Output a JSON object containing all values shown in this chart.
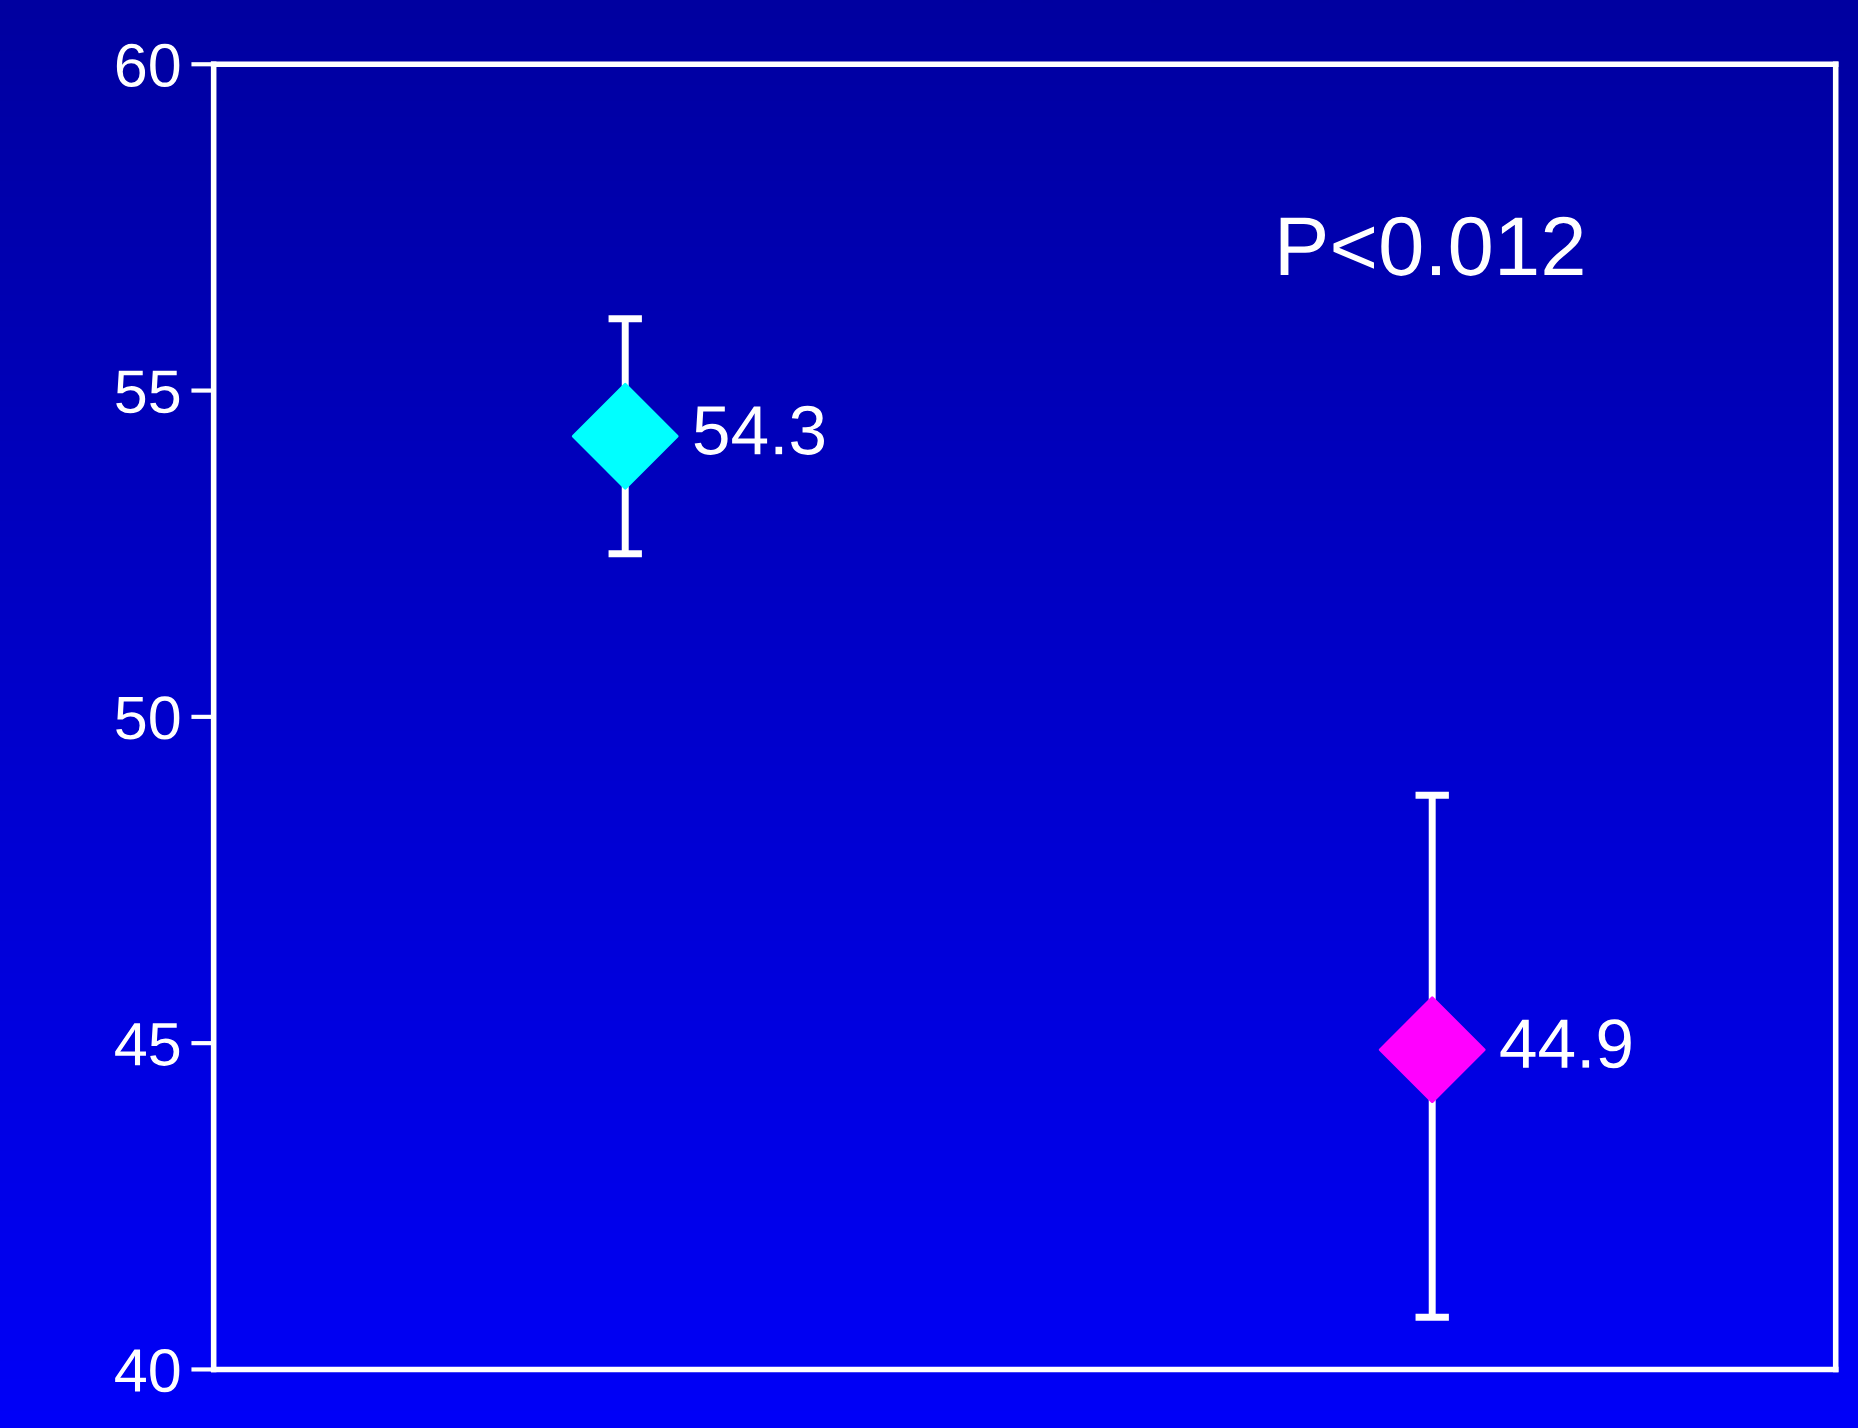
{
  "chart_data": {
    "type": "scatter",
    "categories": [
      null,
      null
    ],
    "values": [
      54.3,
      44.9
    ],
    "colors": [
      "#00ffff",
      "#ff00ff"
    ],
    "errors": [
      [
        52.5,
        56.1
      ],
      [
        40.8,
        48.8
      ]
    ],
    "marker": "diamond",
    "data_labels": true,
    "annotations": [
      "P<0.012"
    ],
    "ylim": [
      40,
      60
    ],
    "yticks": [
      40,
      45,
      50,
      55,
      60
    ],
    "tick_labels": "y",
    "grid": false
  }
}
